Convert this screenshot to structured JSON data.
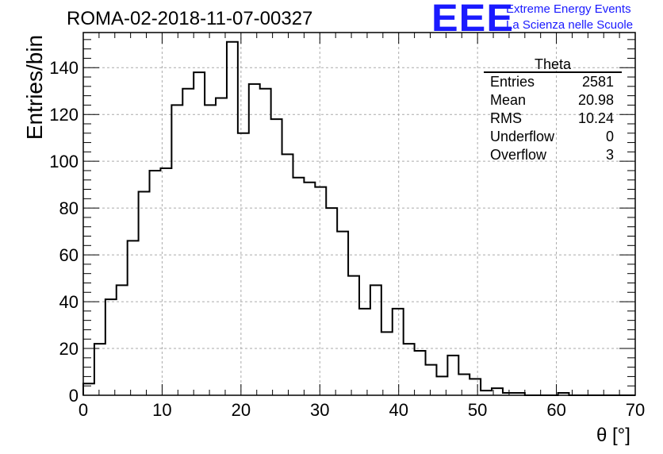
{
  "header": {
    "title": "ROMA-02-2018-11-07-00327",
    "logo": "EEE",
    "logo_line1": "Extreme Energy Events",
    "logo_line2": "La Scienza nelle Scuole"
  },
  "stats": {
    "name": "Theta",
    "rows": [
      {
        "label": "Entries",
        "value": "2581"
      },
      {
        "label": "Mean",
        "value": "20.98"
      },
      {
        "label": "RMS",
        "value": "10.24"
      },
      {
        "label": "Underflow",
        "value": "0"
      },
      {
        "label": "Overflow",
        "value": "3"
      }
    ]
  },
  "colors": {
    "line": "#000000",
    "grid": "#aaaaaa",
    "brand": "#1a1aff"
  },
  "chart_data": {
    "type": "histogram",
    "xlabel": "θ [°]",
    "ylabel": "Entries/bin",
    "xlim": [
      0,
      70
    ],
    "ylim": [
      0,
      155
    ],
    "grid": true,
    "bin_width": 1.4,
    "xticks": [
      0,
      10,
      20,
      30,
      40,
      50,
      60,
      70
    ],
    "yticks": [
      0,
      20,
      40,
      60,
      80,
      100,
      120,
      140
    ],
    "values": [
      5,
      22,
      41,
      47,
      66,
      87,
      96,
      97,
      124,
      131,
      138,
      124,
      127,
      151,
      112,
      133,
      131,
      118,
      103,
      93,
      91,
      89,
      80,
      70,
      51,
      37,
      47,
      27,
      37,
      22,
      19,
      13,
      8,
      17,
      9,
      7,
      2,
      3,
      1,
      1,
      0,
      0,
      0,
      1,
      0,
      0,
      0,
      0,
      0,
      0
    ]
  }
}
